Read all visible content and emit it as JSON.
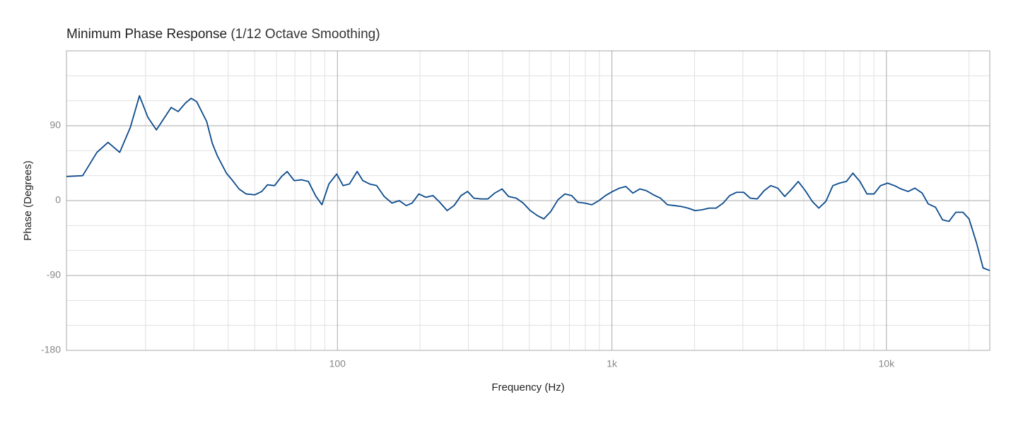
{
  "chart_data": {
    "type": "line",
    "title": "Minimum Phase Response",
    "subtitle": "(1/12 Octave Smoothing)",
    "xlabel": "Frequency (Hz)",
    "ylabel": "Phase (Degrees)",
    "xscale": "log",
    "xlim": [
      10.3,
      23800
    ],
    "ylim": [
      -180,
      180
    ],
    "xticks": [
      100,
      {
        "value": 1000,
        "label": "1k"
      },
      {
        "value": 10000,
        "label": "10k"
      }
    ],
    "yticks": [
      -180,
      -90,
      0,
      90
    ],
    "xminor": [
      20,
      30,
      40,
      50,
      60,
      70,
      80,
      90,
      200,
      300,
      400,
      500,
      600,
      700,
      800,
      900,
      2000,
      3000,
      4000,
      5000,
      6000,
      7000,
      8000,
      9000,
      20000
    ],
    "yminor": [
      -150,
      -120,
      -60,
      -30,
      30,
      60,
      120,
      150
    ],
    "grid": true,
    "color": "#0b4a8b",
    "x": [
      10.3,
      11.8,
      13.3,
      14.6,
      16.1,
      17.6,
      19.0,
      20.4,
      21.9,
      24.8,
      26.3,
      27.9,
      29.3,
      30.7,
      33.4,
      35.0,
      36.5,
      39.4,
      41.3,
      43.8,
      46.5,
      50.0,
      53.0,
      55.6,
      59.0,
      62.6,
      65.6,
      69.6,
      73.9,
      78.4,
      83.2,
      87.8,
      93.1,
      99.4,
      104.9,
      110.6,
      118,
      123.8,
      131,
      139,
      148,
      158,
      168,
      178,
      187,
      198,
      210,
      223,
      236,
      251,
      266,
      282,
      298,
      314,
      333,
      353,
      374,
      398,
      420,
      448,
      475,
      504,
      535,
      565,
      599,
      636,
      674,
      713,
      752,
      796,
      845,
      897,
      947,
      1005,
      1066,
      1124,
      1192,
      1264,
      1334,
      1416,
      1502,
      1593,
      1690,
      1785,
      1893,
      2008,
      2130,
      2259,
      2397,
      2543,
      2684,
      2847,
      3020,
      3188,
      3382,
      3587,
      3788,
      4018,
      4262,
      4522,
      4772,
      5063,
      5370,
      5670,
      6016,
      6381,
      6738,
      7148,
      7548,
      8007,
      8495,
      9011,
      9515,
      10100,
      10700,
      11300,
      12000,
      12700,
      13500,
      14200,
      15100,
      16000,
      16900,
      17900,
      19000,
      20000,
      21300,
      22500,
      23800
    ],
    "values": [
      29,
      30,
      58,
      70,
      58,
      88,
      126,
      100,
      85,
      112,
      107,
      117,
      123,
      119,
      95,
      69,
      54,
      33,
      25,
      14,
      8,
      7,
      11,
      19,
      18,
      29,
      35,
      24,
      25,
      23,
      6,
      -5,
      20,
      32,
      18,
      20,
      35,
      24,
      20,
      18,
      5,
      -3,
      0,
      -6,
      -3,
      8,
      4,
      6,
      -2,
      -12,
      -6,
      6,
      11,
      3,
      2,
      2,
      9,
      14,
      5,
      3,
      -3,
      -12,
      -18,
      -22,
      -13,
      1,
      8,
      6,
      -2,
      -3,
      -5,
      0,
      6,
      11,
      15,
      17,
      9,
      14,
      12,
      7,
      3,
      -5,
      -6,
      -7,
      -9,
      -12,
      -11,
      -9,
      -9,
      -3,
      6,
      10,
      10,
      3,
      2,
      12,
      18,
      15,
      5,
      14,
      23,
      12,
      -1,
      -9,
      -1,
      18,
      21,
      23,
      33,
      23,
      8,
      8,
      18,
      21,
      18,
      14,
      11,
      15,
      9,
      -4,
      -8,
      -23,
      -25,
      -14,
      -14,
      -22,
      -51,
      -81,
      -84
    ]
  }
}
